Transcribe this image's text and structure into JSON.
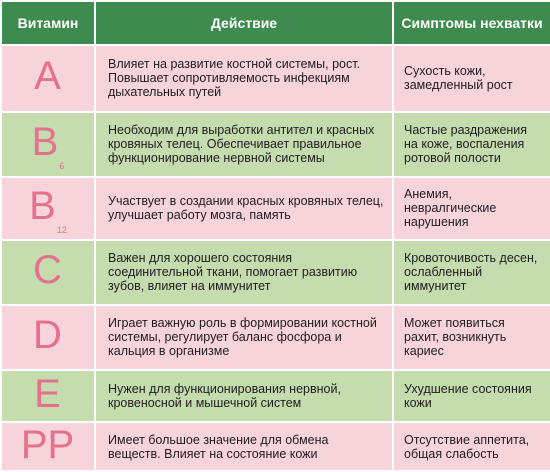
{
  "header": {
    "col_vitamin": "Витамин",
    "col_action": "Действие",
    "col_symptoms": "Симптомы нехватки"
  },
  "rows": [
    {
      "letter": "A",
      "sub": "",
      "action": "Влияет на развитие костной системы, рост. Повышает сопротивляемость инфекциям дыхательных путей",
      "symptoms": "Сухость кожи, замедленный рост"
    },
    {
      "letter": "B",
      "sub": "6",
      "action": "Необходим для выработки антител и красных кровяных телец. Обеспечивает правильное функционирование нервной системы",
      "symptoms": "Частые раздражения на коже, воспаления ротовой полости"
    },
    {
      "letter": "B",
      "sub": "12",
      "action": "Участвует в создании красных кровяных телец, улучшает работу мозга, память",
      "symptoms": "Анемия, невралгические нарушения"
    },
    {
      "letter": "C",
      "sub": "",
      "action": "Важен для хорошего состояния соединительной ткани, помогает развитию зубов, влияет на иммунитет",
      "symptoms": "Кровоточивость десен, ослабленный иммунитет"
    },
    {
      "letter": "D",
      "sub": "",
      "action": "Играет важную роль в формировании костной системы, регулирует баланс фосфора и кальция в организме",
      "symptoms": "Может появиться рахит, возникнуть кариес"
    },
    {
      "letter": "E",
      "sub": "",
      "action": "Нужен для функционирования нервной, кровеносной и мышечной систем",
      "symptoms": "Ухудшение состояния кожи"
    },
    {
      "letter": "PP",
      "sub": "",
      "action": "Имеет большое значение для обмена веществ. Влияет на состояние кожи",
      "symptoms": "Отсутствие аппетита, общая слабость"
    }
  ]
}
